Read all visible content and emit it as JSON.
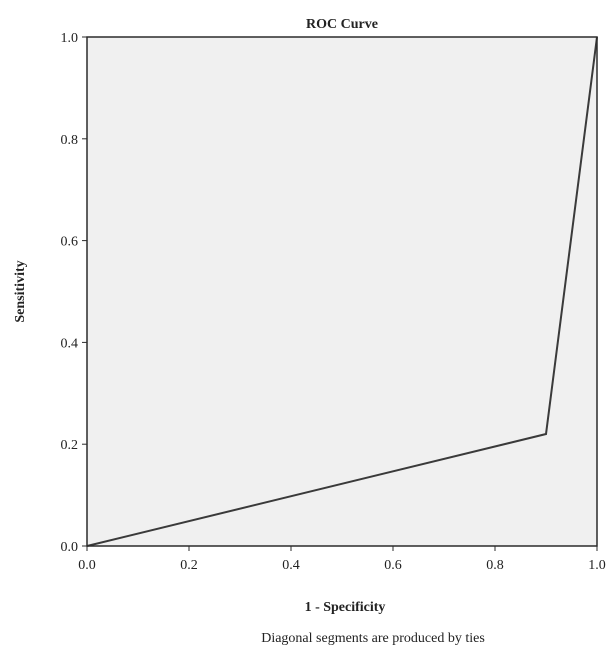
{
  "chart_data": {
    "type": "line",
    "title": "ROC Curve",
    "xlabel": "1 - Specificity",
    "ylabel": "Sensitivity",
    "xlim": [
      0,
      1
    ],
    "ylim": [
      0,
      1
    ],
    "xticks": [
      "0.0",
      "0.2",
      "0.4",
      "0.6",
      "0.8",
      "1.0"
    ],
    "yticks": [
      "0.0",
      "0.2",
      "0.4",
      "0.6",
      "0.8",
      "1.0"
    ],
    "grid": false,
    "series": [
      {
        "x": [
          0.0,
          0.9,
          1.0
        ],
        "y": [
          0.0,
          0.22,
          1.0
        ]
      }
    ],
    "annotation": "Diagonal segments are produced by ties"
  },
  "colors": {
    "plot_background": "#f0f0f0",
    "frame": "#2b2b2b",
    "line": "#3a3a3a"
  }
}
